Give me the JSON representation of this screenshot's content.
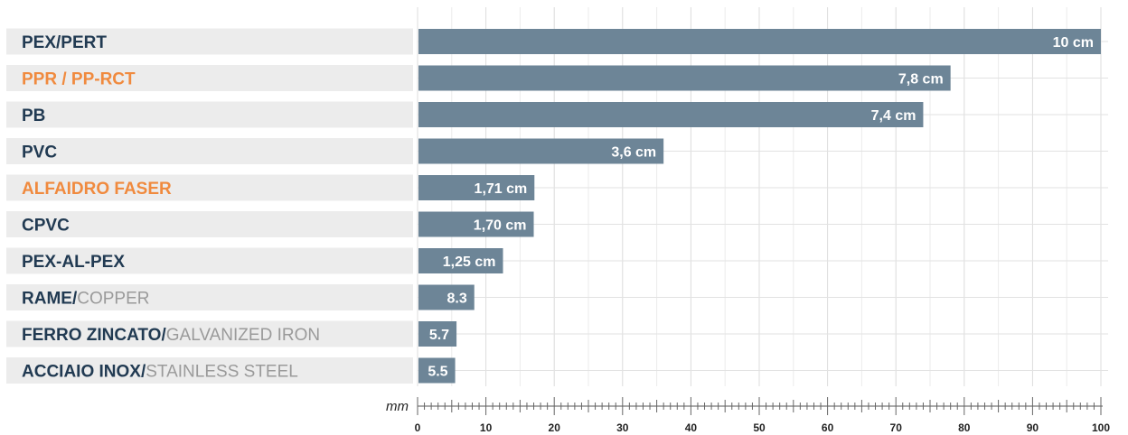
{
  "chart_data": {
    "type": "bar",
    "orientation": "horizontal",
    "xlabel": "mm",
    "xlim": [
      0,
      100
    ],
    "x_ticks": [
      0,
      10,
      20,
      30,
      40,
      50,
      60,
      70,
      80,
      90,
      100
    ],
    "grid": true,
    "colors": {
      "bar": "#6d8597",
      "label_dark": "#213a52",
      "label_orange": "#f08a3e",
      "label_secondary": "#9a9a9a"
    },
    "categories": [
      {
        "label": "PEX/PERT",
        "secondary": "",
        "highlight": false,
        "value": 100,
        "value_label": "10 cm"
      },
      {
        "label": "PPR / PP-RCT",
        "secondary": "",
        "highlight": true,
        "value": 78,
        "value_label": "7,8 cm"
      },
      {
        "label": "PB",
        "secondary": "",
        "highlight": false,
        "value": 74,
        "value_label": "7,4 cm"
      },
      {
        "label": "PVC",
        "secondary": "",
        "highlight": false,
        "value": 36,
        "value_label": "3,6 cm"
      },
      {
        "label": "ALFAIDRO FASER",
        "secondary": "",
        "highlight": true,
        "value": 17.1,
        "value_label": "1,71 cm"
      },
      {
        "label": "CPVC",
        "secondary": "",
        "highlight": false,
        "value": 17,
        "value_label": "1,70 cm"
      },
      {
        "label": "PEX-AL-PEX",
        "secondary": "",
        "highlight": false,
        "value": 12.5,
        "value_label": "1,25 cm"
      },
      {
        "label": "RAME/",
        "secondary": "COPPER",
        "highlight": false,
        "value": 8.3,
        "value_label": "8.3"
      },
      {
        "label": "FERRO ZINCATO/",
        "secondary": "GALVANIZED IRON",
        "highlight": false,
        "value": 5.7,
        "value_label": "5.7"
      },
      {
        "label": "ACCIAIO INOX/",
        "secondary": "STAINLESS STEEL",
        "highlight": false,
        "value": 5.5,
        "value_label": "5.5"
      }
    ]
  }
}
